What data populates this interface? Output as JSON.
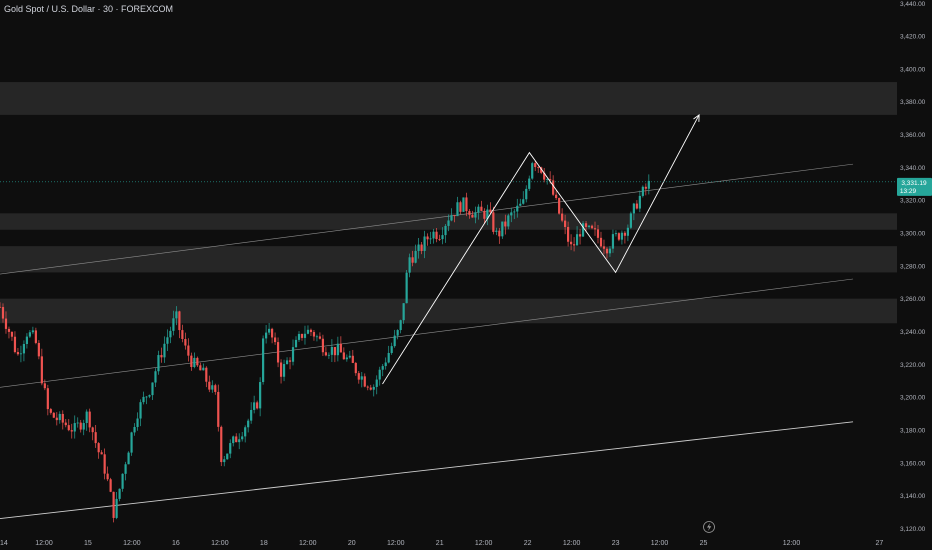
{
  "header": {
    "title": "Gold Spot / U.S. Dollar · 30 · FOREXCOM"
  },
  "price_badge": {
    "price": "3,331.19",
    "countdown": "13:29"
  },
  "colors": {
    "background": "#0e0e0e",
    "up": "#26a69a",
    "down": "#ef5350",
    "zone": "#2a2a2a",
    "trendline": "#8f8f8f",
    "pattern": "#ffffff",
    "axis_text": "#b2b5be",
    "badge": "#26a69a"
  },
  "icons": {
    "time_axis_marker": "lightning-icon"
  },
  "chart_data": {
    "type": "candlestick",
    "title": "Gold Spot / U.S. Dollar · 30 · FOREXCOM",
    "y_axis": {
      "position": "right",
      "ticks": [
        3120,
        3140,
        3160,
        3180,
        3200,
        3220,
        3240,
        3260,
        3280,
        3300,
        3320,
        3340,
        3360,
        3380,
        3400,
        3420,
        3440
      ],
      "tick_labels": [
        "3,120.00",
        "3,140.00",
        "3,160.00",
        "3,180.00",
        "3,200.00",
        "3,220.00",
        "3,240.00",
        "3,260.00",
        "3,280.00",
        "3,300.00",
        "3,320.00",
        "3,340.00",
        "3,360.00",
        "3,380.00",
        "3,400.00",
        "3,420.00",
        "3,440.00"
      ],
      "ylim": [
        3116,
        3442
      ]
    },
    "x_axis": {
      "tick_labels": [
        "14",
        "12:00",
        "15",
        "12:00",
        "16",
        "12:00",
        "18",
        "12:00",
        "20",
        "12:00",
        "21",
        "12:00",
        "22",
        "12:00",
        "23",
        "12:00",
        "25",
        "12:00",
        "27"
      ],
      "tick_times": [
        0,
        0.5,
        1,
        1.5,
        2,
        2.5,
        3,
        3.5,
        4,
        4.5,
        5,
        5.5,
        6,
        6.5,
        7,
        7.5,
        8,
        9,
        10
      ],
      "xlim": [
        0,
        10.2
      ]
    },
    "last_price": 3331.19,
    "path_points": [
      [
        0.0,
        3255
      ],
      [
        0.12,
        3238
      ],
      [
        0.2,
        3225
      ],
      [
        0.3,
        3240
      ],
      [
        0.4,
        3235
      ],
      [
        0.55,
        3190
      ],
      [
        0.7,
        3185
      ],
      [
        0.85,
        3180
      ],
      [
        1.0,
        3190
      ],
      [
        1.1,
        3170
      ],
      [
        1.2,
        3155
      ],
      [
        1.3,
        3128
      ],
      [
        1.4,
        3155
      ],
      [
        1.55,
        3190
      ],
      [
        1.7,
        3205
      ],
      [
        1.85,
        3230
      ],
      [
        2.0,
        3249
      ],
      [
        2.1,
        3230
      ],
      [
        2.2,
        3220
      ],
      [
        2.3,
        3215
      ],
      [
        2.45,
        3200
      ],
      [
        2.52,
        3162
      ],
      [
        2.62,
        3170
      ],
      [
        2.75,
        3180
      ],
      [
        2.85,
        3188
      ],
      [
        2.95,
        3200
      ],
      [
        3.0,
        3245
      ],
      [
        3.1,
        3235
      ],
      [
        3.2,
        3215
      ],
      [
        3.3,
        3225
      ],
      [
        3.45,
        3240
      ],
      [
        3.55,
        3240
      ],
      [
        3.7,
        3230
      ],
      [
        3.85,
        3228
      ],
      [
        4.0,
        3220
      ],
      [
        4.15,
        3210
      ],
      [
        4.25,
        3207
      ],
      [
        4.4,
        3225
      ],
      [
        4.55,
        3242
      ],
      [
        4.65,
        3285
      ],
      [
        4.75,
        3288
      ],
      [
        4.9,
        3300
      ],
      [
        5.0,
        3300
      ],
      [
        5.1,
        3310
      ],
      [
        5.25,
        3318
      ],
      [
        5.4,
        3312
      ],
      [
        5.55,
        3312
      ],
      [
        5.65,
        3298
      ],
      [
        5.8,
        3310
      ],
      [
        5.95,
        3318
      ],
      [
        6.05,
        3345
      ],
      [
        6.15,
        3340
      ],
      [
        6.25,
        3330
      ],
      [
        6.4,
        3305
      ],
      [
        6.5,
        3290
      ],
      [
        6.6,
        3302
      ],
      [
        6.75,
        3300
      ],
      [
        6.9,
        3292
      ],
      [
        7.05,
        3300
      ],
      [
        7.15,
        3305
      ],
      [
        7.25,
        3320
      ],
      [
        7.4,
        3331
      ]
    ],
    "zones": [
      {
        "from": 3372,
        "to": 3392
      },
      {
        "from": 3302,
        "to": 3312
      },
      {
        "from": 3276,
        "to": 3292
      },
      {
        "from": 3245,
        "to": 3260
      }
    ],
    "trendlines": [
      {
        "points": [
          [
            0.0,
            3275
          ],
          [
            9.7,
            3342
          ]
        ],
        "style": "thin"
      },
      {
        "points": [
          [
            0.0,
            3206
          ],
          [
            9.7,
            3272
          ]
        ],
        "style": "thin"
      },
      {
        "points": [
          [
            0.0,
            3126
          ],
          [
            9.7,
            3185
          ]
        ],
        "style": "medium"
      }
    ],
    "projection_path": {
      "points": [
        [
          4.35,
          3208
        ],
        [
          6.02,
          3349
        ],
        [
          7.0,
          3276
        ],
        [
          7.95,
          3372
        ]
      ],
      "arrow_at_end": true
    },
    "grid": false,
    "legend": "none"
  }
}
